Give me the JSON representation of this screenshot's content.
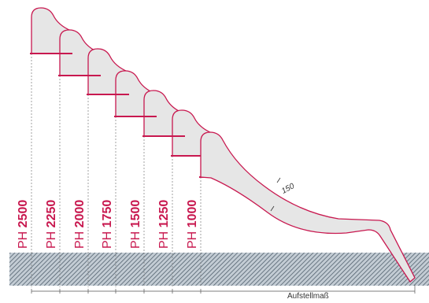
{
  "diagram": {
    "slides": [
      {
        "label_prefix": "PH",
        "height_value": "2500"
      },
      {
        "label_prefix": "PH",
        "height_value": "2250"
      },
      {
        "label_prefix": "PH",
        "height_value": "2000"
      },
      {
        "label_prefix": "PH",
        "height_value": "1750"
      },
      {
        "label_prefix": "PH",
        "height_value": "1500"
      },
      {
        "label_prefix": "PH",
        "height_value": "1250"
      },
      {
        "label_prefix": "PH",
        "height_value": "1000"
      }
    ],
    "thickness_label": "150",
    "dimension_label": "Aufstellmaß",
    "colors": {
      "outline": "#c8184f",
      "fill": "#e6e6e6",
      "ground_hatch": "#5a6a78",
      "ground_bg": "#b9c3cc",
      "dashed": "#7a7a7a"
    }
  }
}
